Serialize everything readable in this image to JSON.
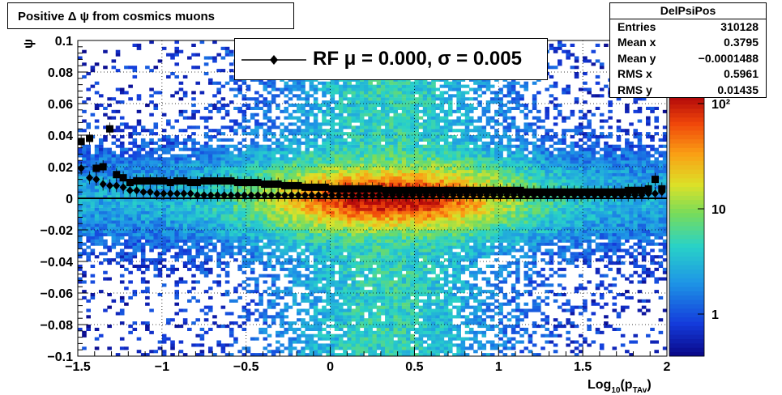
{
  "title": "Positive Δ ψ from cosmics muons",
  "stats": {
    "name": "DelPsiPos",
    "rows": [
      {
        "key": "Entries",
        "value": "310128"
      },
      {
        "key": "Mean x",
        "value": "0.3795"
      },
      {
        "key": "Mean y",
        "value": "−0.0001488"
      },
      {
        "key": "RMS x",
        "value": "0.5961"
      },
      {
        "key": "RMS y",
        "value": "0.01435"
      }
    ]
  },
  "legend": {
    "label": "RF μ =  0.000, σ =   0.005"
  },
  "chart_data": {
    "type": "heatmap",
    "xlabel": "Log10(pTAv)",
    "ylabel": "ψ",
    "xlim": [
      -1.5,
      2.0
    ],
    "ylim": [
      -0.1,
      0.1
    ],
    "xticks": [
      "−1.5",
      "−1",
      "−0.5",
      "0",
      "0.5",
      "1",
      "1.5",
      "2"
    ],
    "yticks": [
      "−0.1",
      "−0.08",
      "−0.06",
      "−0.04",
      "−0.02",
      "0",
      "0.02",
      "0.04",
      "0.06",
      "0.08",
      "0.1"
    ],
    "zscale": "log",
    "zticks": [
      "1",
      "10",
      "10²"
    ],
    "grid": true,
    "fit_line_y": 0.0,
    "series": [
      {
        "marker": "square",
        "x": [
          -1.48,
          -1.43,
          -1.39,
          -1.35,
          -1.31,
          -1.27,
          -1.23,
          -1.19,
          -1.15,
          -1.11,
          -1.07,
          -1.03,
          -0.99,
          -0.95,
          -0.91,
          -0.87,
          -0.83,
          -0.79,
          -0.75,
          -0.71,
          -0.67,
          -0.63,
          -0.59,
          -0.55,
          -0.51,
          -0.47,
          -0.43,
          -0.39,
          -0.35,
          -0.31,
          -0.27,
          -0.23,
          -0.19,
          -0.15,
          -0.11,
          -0.07,
          -0.03,
          0.01,
          0.05,
          0.09,
          0.13,
          0.17,
          0.21,
          0.25,
          0.29,
          0.33,
          0.37,
          0.41,
          0.45,
          0.49,
          0.53,
          0.57,
          0.61,
          0.65,
          0.69,
          0.73,
          0.77,
          0.81,
          0.85,
          0.89,
          0.93,
          0.97,
          1.01,
          1.05,
          1.09,
          1.13,
          1.17,
          1.21,
          1.25,
          1.29,
          1.33,
          1.37,
          1.41,
          1.45,
          1.49,
          1.53,
          1.57,
          1.61,
          1.65,
          1.69,
          1.73,
          1.77,
          1.81,
          1.85,
          1.89,
          1.93,
          1.97
        ],
        "y": [
          0.036,
          0.038,
          0.019,
          0.02,
          0.044,
          0.015,
          0.013,
          0.01,
          0.011,
          0.011,
          0.011,
          0.011,
          0.011,
          0.01,
          0.011,
          0.011,
          0.01,
          0.01,
          0.011,
          0.011,
          0.011,
          0.011,
          0.011,
          0.01,
          0.01,
          0.01,
          0.01,
          0.009,
          0.009,
          0.009,
          0.008,
          0.008,
          0.008,
          0.007,
          0.007,
          0.007,
          0.007,
          0.006,
          0.006,
          0.006,
          0.006,
          0.006,
          0.006,
          0.006,
          0.006,
          0.005,
          0.005,
          0.005,
          0.005,
          0.005,
          0.005,
          0.005,
          0.005,
          0.005,
          0.005,
          0.005,
          0.005,
          0.005,
          0.005,
          0.005,
          0.005,
          0.005,
          0.005,
          0.005,
          0.005,
          0.005,
          0.004,
          0.004,
          0.004,
          0.004,
          0.004,
          0.004,
          0.004,
          0.004,
          0.004,
          0.004,
          0.004,
          0.004,
          0.004,
          0.004,
          0.004,
          0.005,
          0.005,
          0.005,
          0.006,
          0.012,
          0.006
        ]
      },
      {
        "marker": "diamond",
        "x": [
          -1.48,
          -1.43,
          -1.39,
          -1.35,
          -1.31,
          -1.27,
          -1.23,
          -1.19,
          -1.15,
          -1.11,
          -1.07,
          -1.03,
          -0.99,
          -0.95,
          -0.91,
          -0.87,
          -0.83,
          -0.79,
          -0.75,
          -0.71,
          -0.67,
          -0.63,
          -0.59,
          -0.55,
          -0.51,
          -0.47,
          -0.43,
          -0.39,
          -0.35,
          -0.31,
          -0.27,
          -0.23,
          -0.19,
          -0.15,
          -0.11,
          -0.07,
          -0.03,
          0.01,
          0.05,
          0.09,
          0.13,
          0.17,
          0.21,
          0.25,
          0.29,
          0.33,
          0.37,
          0.41,
          0.45,
          0.49,
          0.53,
          0.57,
          0.61,
          0.65,
          0.69,
          0.73,
          0.77,
          0.81,
          0.85,
          0.89,
          0.93,
          0.97,
          1.01,
          1.05,
          1.09,
          1.13,
          1.17,
          1.21,
          1.25,
          1.29,
          1.33,
          1.37,
          1.41,
          1.45,
          1.49,
          1.53,
          1.57,
          1.61,
          1.65,
          1.69,
          1.73,
          1.77,
          1.81,
          1.85,
          1.89,
          1.93,
          1.97
        ],
        "y": [
          0.019,
          0.013,
          0.012,
          0.009,
          0.008,
          0.008,
          0.007,
          0.005,
          0.005,
          0.004,
          0.004,
          0.003,
          0.003,
          0.003,
          0.003,
          0.003,
          0.003,
          0.002,
          0.002,
          0.002,
          0.002,
          0.002,
          0.002,
          0.002,
          0.002,
          0.002,
          0.002,
          0.002,
          0.002,
          0.002,
          0.002,
          0.002,
          0.002,
          0.002,
          0.002,
          0.002,
          0.002,
          0.002,
          0.002,
          0.002,
          0.002,
          0.002,
          0.002,
          0.002,
          0.002,
          0.002,
          0.002,
          0.002,
          0.002,
          0.002,
          0.002,
          0.002,
          0.002,
          0.002,
          0.002,
          0.002,
          0.002,
          0.002,
          0.002,
          0.002,
          0.002,
          0.002,
          0.002,
          0.002,
          0.002,
          0.002,
          0.002,
          0.002,
          0.002,
          0.002,
          0.002,
          0.002,
          0.002,
          0.002,
          0.002,
          0.002,
          0.002,
          0.002,
          0.002,
          0.002,
          0.002,
          0.002,
          0.002,
          0.002,
          0.003,
          0.003,
          0.004
        ]
      }
    ]
  }
}
